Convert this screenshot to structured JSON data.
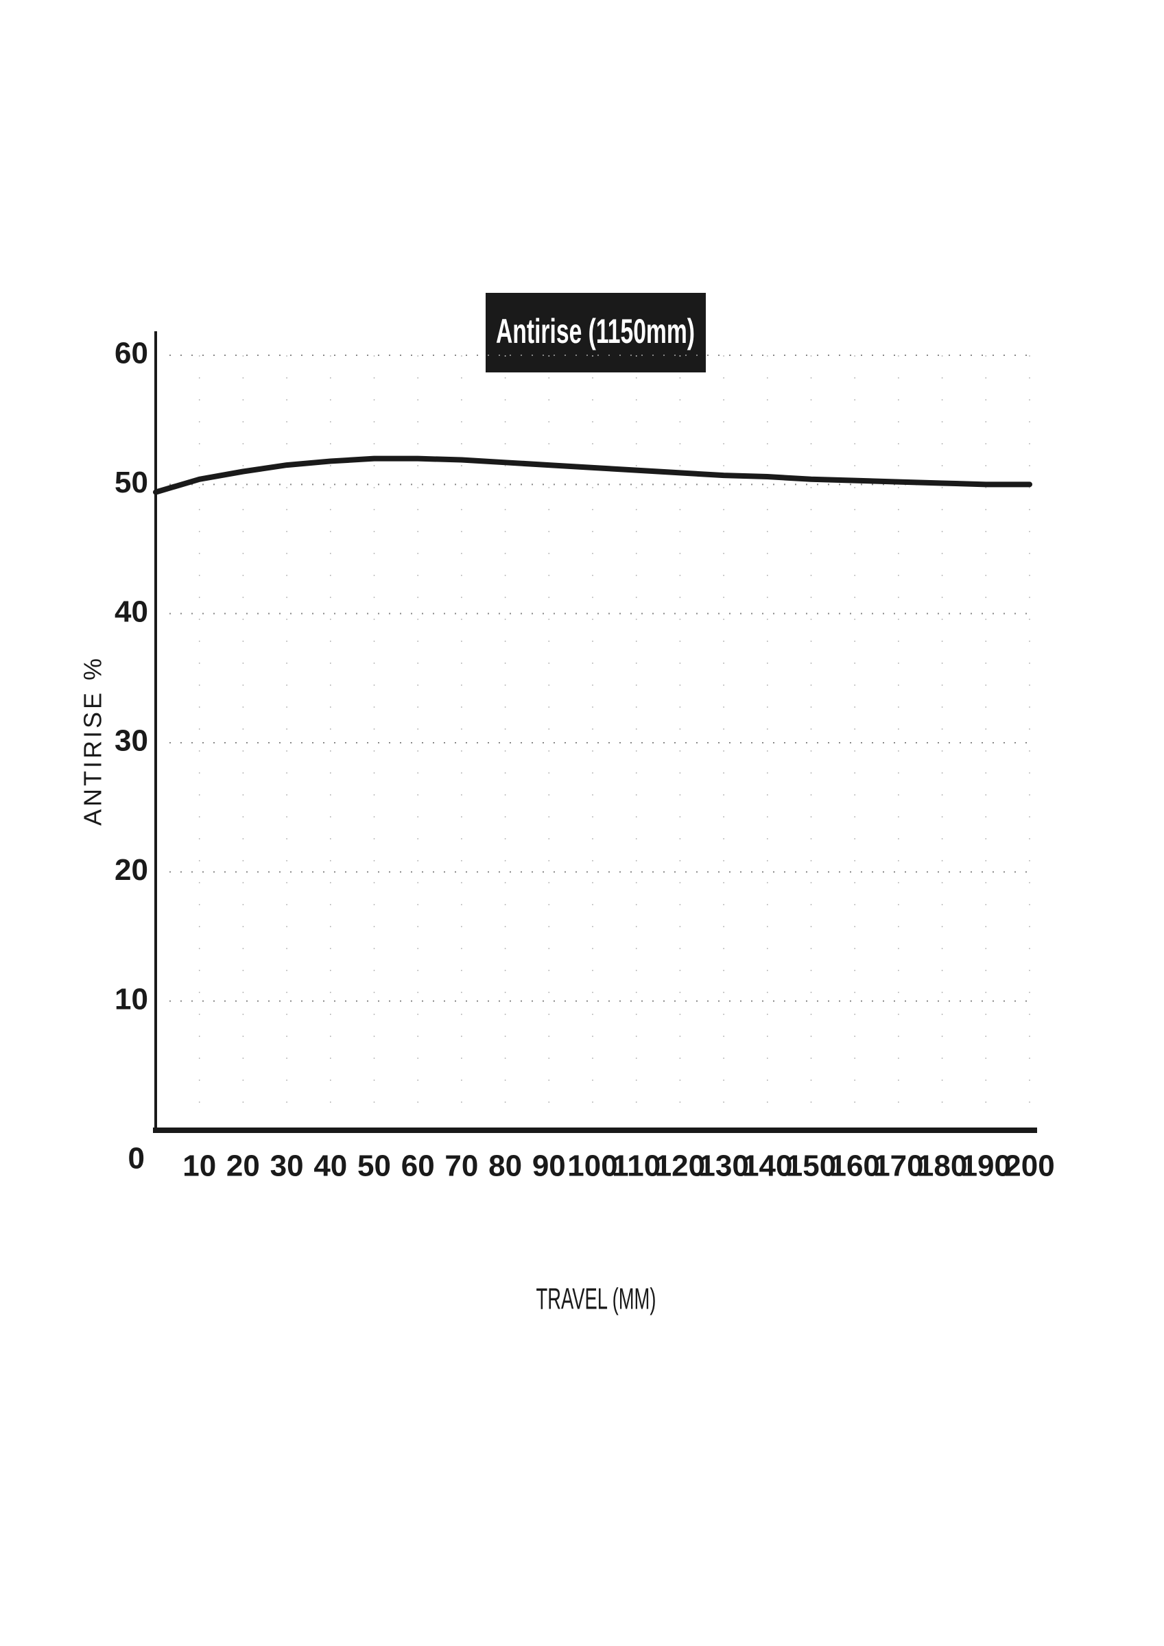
{
  "chart_data": {
    "type": "line",
    "title": "Antirise (1150mm)",
    "x_label": "TRAVEL (MM)",
    "y_label": "ANTIRISE %",
    "x": [
      0,
      10,
      20,
      30,
      40,
      50,
      60,
      70,
      80,
      90,
      100,
      110,
      120,
      130,
      140,
      150,
      160,
      170,
      180,
      190,
      200
    ],
    "series": [
      {
        "name": "Antirise",
        "color": "#1a1a1a",
        "values": [
          49.4,
          50.4,
          51.0,
          51.5,
          51.8,
          52.0,
          52.0,
          51.9,
          51.7,
          51.5,
          51.3,
          51.1,
          50.9,
          50.7,
          50.6,
          50.4,
          50.3,
          50.2,
          50.1,
          50.0,
          50.0
        ]
      }
    ],
    "xlim": [
      0,
      200
    ],
    "xticks": [
      0,
      10,
      20,
      30,
      40,
      50,
      60,
      70,
      80,
      90,
      100,
      110,
      120,
      130,
      140,
      150,
      160,
      170,
      180,
      190,
      200
    ],
    "ylim": [
      0,
      60
    ],
    "yticks": [
      0,
      10,
      20,
      30,
      40,
      50,
      60
    ],
    "grid": true
  }
}
